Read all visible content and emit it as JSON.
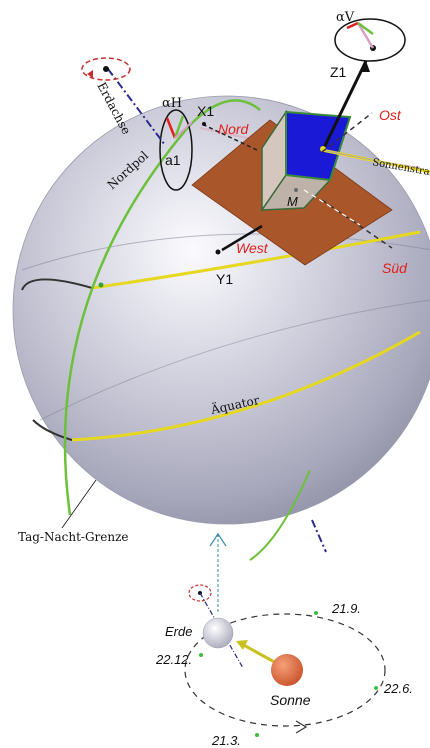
{
  "labels": {
    "alpha_v": "αV",
    "alpha_h": "αH",
    "z1": "Z1",
    "x1": "X1",
    "y1": "Y1",
    "a1": "a1",
    "m": "M",
    "nord": "Nord",
    "ost": "Ost",
    "west": "West",
    "sued": "Süd",
    "sonnenstrahl": "Sonnenstrahl",
    "erdachse": "Erdachse",
    "nordpol": "Nordpol",
    "aequator": "Äquator",
    "tag_nacht_grenze": "Tag-Nacht-Grenze",
    "erde": "Erde",
    "sonne": "Sonne",
    "date_21_9": "21.9.",
    "date_22_12": "22.12.",
    "date_22_6": "22.6.",
    "date_21_3": "21.3."
  },
  "colors": {
    "sphere_light": "#f2f2f8",
    "sphere_dark": "#8e8ea6",
    "yellow_circle": "#e6d820",
    "green_line": "#6cc03a",
    "plane_brown": "#a9562b",
    "cube_blue": "#1a1ad6",
    "red_label": "#e0201a",
    "sun_orange": "#d9693b",
    "axis_blue": "#2a2a90"
  }
}
